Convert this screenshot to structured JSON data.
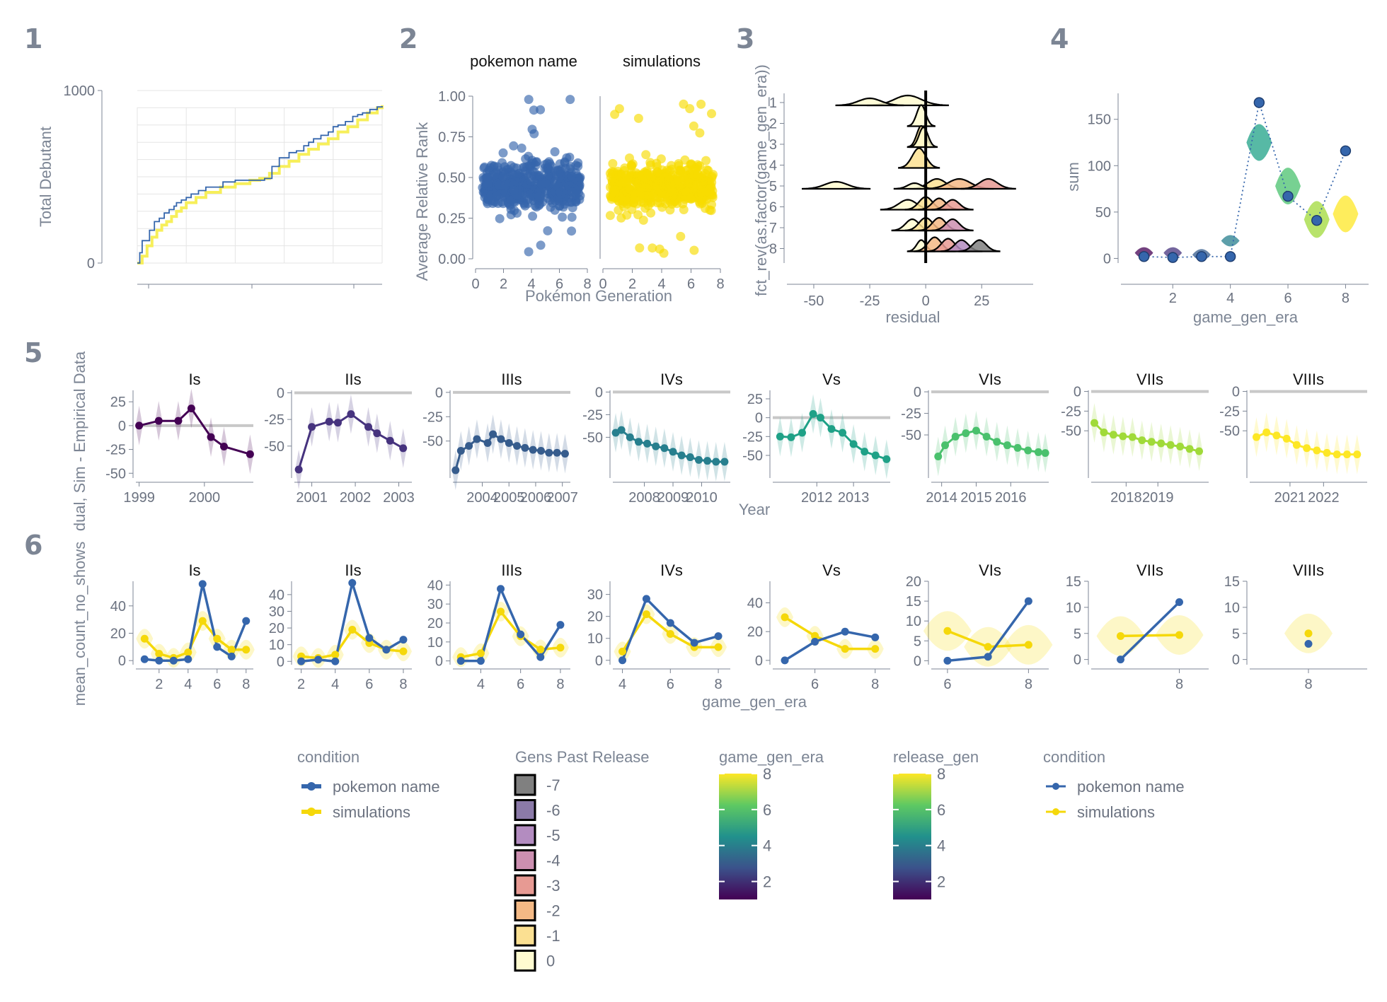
{
  "panel_tags": [
    "1",
    "2",
    "3",
    "4",
    "5",
    "6"
  ],
  "colors": {
    "pokemon": "#3566ac",
    "sim": "#f5d80a",
    "axis": "#7c8594",
    "grid": "#e5e5e5",
    "gen_era": [
      "#440154",
      "#46337e",
      "#365c8d",
      "#277f8e",
      "#1fa187",
      "#4ac16d",
      "#a0da39",
      "#fde725"
    ]
  },
  "chart_data": [
    {
      "id": "p1",
      "type": "line",
      "ylabel": "Total Debutant",
      "ylim": [
        0,
        1000
      ],
      "y_ticks": [
        "0",
        "1000"
      ],
      "x_ticks_shown": false,
      "series": [
        {
          "name": "pokemon name",
          "x": [
            0,
            1,
            2,
            5,
            7,
            9,
            11,
            13,
            15,
            16,
            18,
            20,
            22,
            25,
            28,
            35,
            40,
            48,
            52,
            55,
            58,
            62,
            65,
            68,
            70,
            72,
            75,
            78,
            80,
            82,
            85,
            88,
            90,
            92,
            95,
            98,
            100
          ],
          "y": [
            0,
            60,
            130,
            190,
            240,
            260,
            290,
            310,
            330,
            350,
            365,
            380,
            400,
            420,
            440,
            470,
            480,
            480,
            490,
            560,
            610,
            640,
            650,
            680,
            700,
            720,
            740,
            760,
            790,
            800,
            820,
            850,
            860,
            870,
            890,
            905,
            910
          ]
        },
        {
          "name": "simulations",
          "x": [
            0,
            2,
            4,
            6,
            8,
            10,
            12,
            14,
            16,
            18,
            20,
            24,
            28,
            34,
            40,
            46,
            50,
            54,
            58,
            62,
            66,
            70,
            74,
            78,
            82,
            86,
            90,
            94,
            98,
            100
          ],
          "y": [
            0,
            40,
            100,
            150,
            190,
            220,
            240,
            270,
            300,
            320,
            350,
            380,
            410,
            440,
            460,
            480,
            490,
            520,
            560,
            590,
            630,
            660,
            690,
            720,
            760,
            790,
            830,
            870,
            900,
            915
          ]
        }
      ]
    },
    {
      "id": "p2",
      "type": "scatter",
      "ylabel": "Average Relative Rank",
      "xlabel": "Pokémon Generation",
      "facets": [
        "pokemon name",
        "simulations"
      ],
      "xlim": [
        0,
        8
      ],
      "ylim": [
        0,
        1
      ],
      "x_ticks": [
        "0",
        "2",
        "4",
        "6",
        "8"
      ],
      "y_ticks": [
        "0.00",
        "0.25",
        "0.50",
        "0.75",
        "1.00"
      ],
      "note": "dense jittered cloud per generation, centred near 0.45, range 0.0-1.0"
    },
    {
      "id": "p3",
      "type": "area",
      "ylabel": "fct_rev(as.factor(game_gen_era))",
      "xlabel": "residual",
      "xlim": [
        -62,
        48
      ],
      "x_ticks": [
        "-50",
        "-25",
        "0",
        "25"
      ],
      "y_ticks": [
        "1",
        "2",
        "3",
        "4",
        "5",
        "6",
        "7",
        "8"
      ],
      "legend": "Gens Past Release"
    },
    {
      "id": "p4",
      "type": "scatter",
      "ylabel": "sum",
      "xlabel": "game_gen_era",
      "xlim": [
        0.2,
        8.8
      ],
      "ylim": [
        -5,
        178
      ],
      "x_ticks": [
        "2",
        "4",
        "6",
        "8"
      ],
      "y_ticks": [
        "0",
        "50",
        "100",
        "150"
      ],
      "x": [
        1,
        2,
        3,
        4,
        5,
        6,
        7,
        8
      ],
      "observed": [
        2,
        1,
        2,
        2,
        168,
        67,
        41,
        116
      ],
      "simulated_center": [
        6,
        6,
        4,
        19,
        125,
        78,
        42,
        48
      ]
    },
    {
      "id": "p5",
      "type": "line",
      "ylabel": "dual, Sim - Empirical Data",
      "xlabel": "Year",
      "facets": [
        {
          "label": "Is",
          "xlim": [
            1998.95,
            2000.75
          ],
          "x_ticks": [
            "1999",
            "2000"
          ],
          "ylim": [
            -55,
            40
          ],
          "y_ticks": [
            "25",
            "0",
            "-25",
            "-50"
          ],
          "x": [
            1999,
            1999.3,
            1999.6,
            1999.8,
            2000.1,
            2000.3,
            2000.7
          ],
          "y": [
            0,
            5,
            5,
            18,
            -12,
            -22,
            -30
          ]
        },
        {
          "label": "IIs",
          "xlim": [
            2000.6,
            2003.3
          ],
          "x_ticks": [
            "2001",
            "2002",
            "2003"
          ],
          "ylim": [
            -80,
            5
          ],
          "y_ticks": [
            "0",
            "-25",
            "-50"
          ],
          "x": [
            2000.7,
            2001,
            2001.4,
            2001.6,
            2001.9,
            2002.3,
            2002.5,
            2002.8,
            2003.1
          ],
          "y": [
            -72,
            -32,
            -27,
            -28,
            -20,
            -32,
            -38,
            -45,
            -52
          ]
        },
        {
          "label": "IIIs",
          "xlim": [
            2002.9,
            2007.3
          ],
          "x_ticks": [
            "2004",
            "2005",
            "2006",
            "2007"
          ],
          "ylim": [
            -88,
            5
          ],
          "y_ticks": [
            "0",
            "-25",
            "-50"
          ],
          "x": [
            2003,
            2003.2,
            2003.5,
            2003.8,
            2004.2,
            2004.4,
            2004.7,
            2005,
            2005.3,
            2005.6,
            2005.9,
            2006.2,
            2006.5,
            2006.8,
            2007.1
          ],
          "y": [
            -80,
            -60,
            -55,
            -48,
            -52,
            -43,
            -48,
            -52,
            -55,
            -57,
            -59,
            -60,
            -62,
            -62,
            -63
          ]
        },
        {
          "label": "IVs",
          "xlim": [
            2006.9,
            2011
          ],
          "x_ticks": [
            "2008",
            "2009",
            "2010"
          ],
          "ylim": [
            -95,
            5
          ],
          "y_ticks": [
            "0",
            "-25",
            "-50"
          ],
          "x": [
            2007,
            2007.2,
            2007.5,
            2007.8,
            2008.1,
            2008.4,
            2008.7,
            2009,
            2009.3,
            2009.6,
            2009.9,
            2010.2,
            2010.5,
            2010.8
          ],
          "y": [
            -45,
            -42,
            -50,
            -55,
            -57,
            -60,
            -62,
            -66,
            -70,
            -72,
            -75,
            -76,
            -77,
            -77
          ]
        },
        {
          "label": "Vs",
          "xlim": [
            2010.8,
            2014
          ],
          "x_ticks": [
            "2012",
            "2013"
          ],
          "ylim": [
            -80,
            40
          ],
          "y_ticks": [
            "25",
            "0",
            "-25",
            "-50"
          ],
          "x": [
            2011,
            2011.3,
            2011.6,
            2011.9,
            2012.1,
            2012.4,
            2012.7,
            2013,
            2013.3,
            2013.6,
            2013.9
          ],
          "y": [
            -25,
            -26,
            -20,
            5,
            0,
            -15,
            -20,
            -35,
            -45,
            -50,
            -55
          ]
        },
        {
          "label": "VIs",
          "xlim": [
            2013.7,
            2017.1
          ],
          "x_ticks": [
            "2014",
            "2015",
            "2016"
          ],
          "ylim": [
            -100,
            5
          ],
          "y_ticks": [
            "0",
            "-25",
            "-50"
          ],
          "x": [
            2013.9,
            2014.1,
            2014.4,
            2014.7,
            2015,
            2015.3,
            2015.6,
            2015.9,
            2016.2,
            2016.5,
            2016.8,
            2017
          ],
          "y": [
            -75,
            -62,
            -52,
            -48,
            -45,
            -52,
            -58,
            -62,
            -65,
            -68,
            -70,
            -71
          ]
        },
        {
          "label": "VIIs",
          "xlim": [
            2016.9,
            2020.6
          ],
          "x_ticks": [
            "2018",
            "2019"
          ],
          "ylim": [
            -110,
            5
          ],
          "y_ticks": [
            "0",
            "-25",
            "-50"
          ],
          "x": [
            2017,
            2017.3,
            2017.6,
            2017.9,
            2018.2,
            2018.5,
            2018.8,
            2019.1,
            2019.4,
            2019.7,
            2020,
            2020.3
          ],
          "y": [
            -40,
            -52,
            -55,
            -57,
            -58,
            -62,
            -64,
            -66,
            -68,
            -70,
            -73,
            -76
          ]
        },
        {
          "label": "VIIIs",
          "xlim": [
            2019.8,
            2023.3
          ],
          "x_ticks": [
            "2021",
            "2022"
          ],
          "ylim": [
            -110,
            5
          ],
          "y_ticks": [
            "0",
            "-25",
            "-50"
          ],
          "x": [
            2020,
            2020.3,
            2020.6,
            2020.9,
            2021.2,
            2021.5,
            2021.8,
            2022.1,
            2022.4,
            2022.7,
            2023
          ],
          "y": [
            -58,
            -52,
            -56,
            -60,
            -68,
            -72,
            -75,
            -78,
            -80,
            -80,
            -80
          ]
        }
      ]
    },
    {
      "id": "p6",
      "type": "line",
      "ylabel": "mean_count_no_shows",
      "xlabel": "game_gen_era",
      "facets": [
        {
          "label": "Is",
          "xlim": [
            0.4,
            8.5
          ],
          "x_ticks": [
            "2",
            "4",
            "6",
            "8"
          ],
          "ylim": [
            -3,
            58
          ],
          "y_ticks": [
            "0",
            "20",
            "40"
          ],
          "x": [
            1,
            2,
            3,
            4,
            5,
            6,
            7,
            8
          ],
          "pokemon": [
            1,
            0,
            0,
            1,
            56,
            10,
            3,
            29
          ],
          "sim": [
            16,
            5,
            2,
            6,
            29,
            16,
            8,
            8
          ]
        },
        {
          "label": "IIs",
          "xlim": [
            1.6,
            8.5
          ],
          "x_ticks": [
            "2",
            "4",
            "6",
            "8"
          ],
          "ylim": [
            -2,
            48
          ],
          "y_ticks": [
            "0",
            "10",
            "20",
            "30",
            "40"
          ],
          "x": [
            2,
            3,
            4,
            5,
            6,
            7,
            8
          ],
          "pokemon": [
            0,
            1,
            0,
            47,
            14,
            7,
            13
          ],
          "sim": [
            3,
            2,
            4,
            19,
            11,
            7,
            6
          ]
        },
        {
          "label": "IIIs",
          "xlim": [
            2.6,
            8.5
          ],
          "x_ticks": [
            "4",
            "6",
            "8"
          ],
          "ylim": [
            -2,
            42
          ],
          "y_ticks": [
            "0",
            "10",
            "20",
            "30",
            "40"
          ],
          "x": [
            3,
            4,
            5,
            6,
            7,
            8
          ],
          "pokemon": [
            0,
            0,
            38,
            14,
            2,
            19
          ],
          "sim": [
            2,
            4,
            26,
            13,
            6,
            7
          ]
        },
        {
          "label": "IVs",
          "xlim": [
            3.6,
            8.5
          ],
          "x_ticks": [
            "4",
            "6",
            "8"
          ],
          "ylim": [
            -2,
            36
          ],
          "y_ticks": [
            "0",
            "10",
            "20",
            "30"
          ],
          "x": [
            4,
            5,
            6,
            7,
            8
          ],
          "pokemon": [
            0,
            28,
            17,
            8,
            11
          ],
          "sim": [
            4,
            21,
            12,
            6,
            6
          ]
        },
        {
          "label": "Vs",
          "xlim": [
            4.6,
            8.5
          ],
          "x_ticks": [
            "6",
            "8"
          ],
          "ylim": [
            -3,
            55
          ],
          "y_ticks": [
            "0",
            "20",
            "40"
          ],
          "x": [
            5,
            6,
            7,
            8
          ],
          "pokemon": [
            0,
            13,
            20,
            16
          ],
          "sim": [
            30,
            17,
            8,
            8
          ]
        },
        {
          "label": "VIs",
          "xlim": [
            5.6,
            8.5
          ],
          "x_ticks": [
            "6",
            "8"
          ],
          "ylim": [
            -1,
            20
          ],
          "y_ticks": [
            "0",
            "5",
            "10",
            "15",
            "20"
          ],
          "x": [
            6,
            7,
            8
          ],
          "pokemon": [
            0,
            1,
            15
          ],
          "sim": [
            7.5,
            3.5,
            4
          ]
        },
        {
          "label": "VIIs",
          "xlim": [
            6.5,
            8.5
          ],
          "x_ticks": [
            "8"
          ],
          "ylim": [
            -1,
            15
          ],
          "y_ticks": [
            "0",
            "5",
            "10",
            "15"
          ],
          "x": [
            7,
            8
          ],
          "pokemon": [
            0,
            11
          ],
          "sim": [
            4.5,
            4.7
          ]
        },
        {
          "label": "VIIIs",
          "xlim": [
            7,
            9
          ],
          "x_ticks": [
            "8"
          ],
          "ylim": [
            -1,
            15
          ],
          "y_ticks": [
            "0",
            "5",
            "10",
            "15"
          ],
          "x": [
            8
          ],
          "pokemon": [
            3
          ],
          "sim": [
            5
          ]
        }
      ]
    }
  ],
  "legends": {
    "condition_a": {
      "title": "condition",
      "items": [
        "pokemon name",
        "simulations"
      ]
    },
    "gens_past": {
      "title": "Gens Past Release",
      "items": [
        "-7",
        "-6",
        "-5",
        "-4",
        "-3",
        "-2",
        "-1",
        "0"
      ],
      "colors": [
        "#808080",
        "#8b7aa8",
        "#b38cc0",
        "#cc8fb0",
        "#e79a93",
        "#f4b985",
        "#fbe092",
        "#fffbd0"
      ]
    },
    "game_gen_era": {
      "title": "game_gen_era",
      "ticks": [
        "2",
        "4",
        "6",
        "8"
      ]
    },
    "release_gen": {
      "title": "release_gen",
      "ticks": [
        "2",
        "4",
        "6",
        "8"
      ]
    },
    "condition_b": {
      "title": "condition",
      "items": [
        "pokemon name",
        "simulations"
      ]
    }
  }
}
